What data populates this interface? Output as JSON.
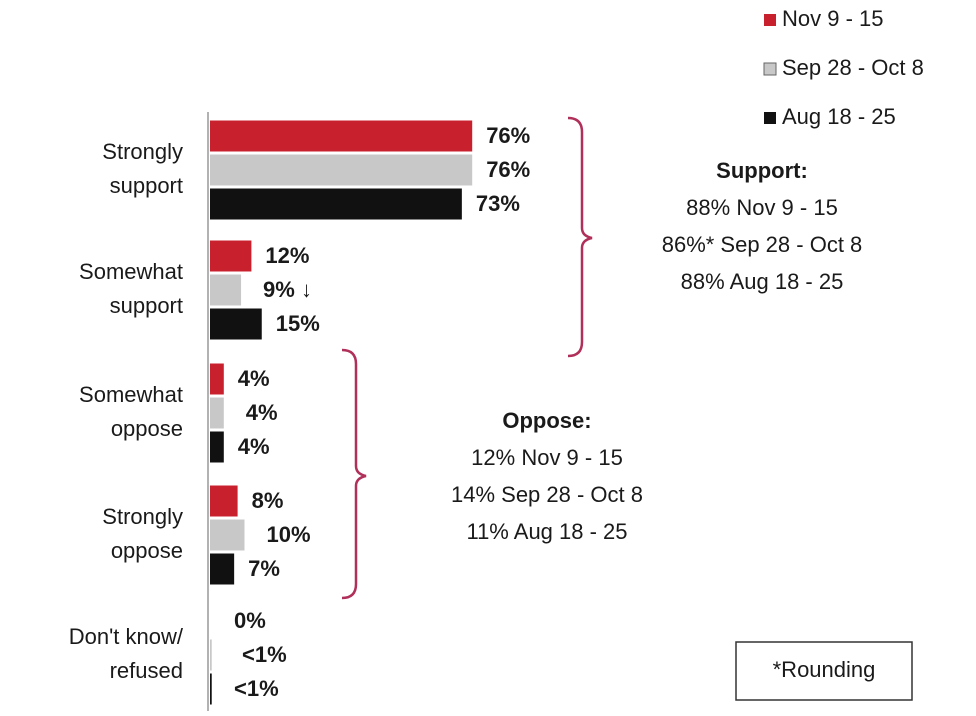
{
  "chart_data": {
    "type": "bar",
    "orientation": "horizontal",
    "categories": [
      [
        "Strongly",
        "support"
      ],
      [
        "Somewhat",
        "support"
      ],
      [
        "Somewhat",
        "oppose"
      ],
      [
        "Strongly",
        "oppose"
      ],
      [
        "Don't know/",
        "refused"
      ]
    ],
    "series": [
      {
        "name": "Nov 9 - 15",
        "color": "#c8202c",
        "values": [
          76,
          12,
          4,
          8,
          0
        ],
        "value_labels": [
          "76%",
          "12%",
          "4%",
          "8%",
          "0%"
        ]
      },
      {
        "name": "Sep 28 - Oct 8",
        "color": "#c8c8c8",
        "values": [
          76,
          9,
          4,
          10,
          0.5
        ],
        "value_labels": [
          "76%",
          "9% ↓",
          "4%",
          "10%",
          "<1%"
        ]
      },
      {
        "name": "Aug 18 - 25",
        "color": "#111111",
        "values": [
          73,
          15,
          4,
          7,
          0.5
        ],
        "value_labels": [
          "73%",
          "15%",
          "4%",
          "7%",
          "<1%"
        ]
      }
    ],
    "xlim": [
      0,
      100
    ],
    "annotations": {
      "support": [
        "Support:",
        "88% Nov 9 - 15",
        "86%* Sep 28 - Oct 8",
        "88% Aug 18 - 25"
      ],
      "oppose": [
        "Oppose:",
        "12% Nov 9 - 15",
        "14% Sep 28 - Oct 8",
        "11% Aug 18 - 25"
      ],
      "note": "*Rounding"
    }
  }
}
